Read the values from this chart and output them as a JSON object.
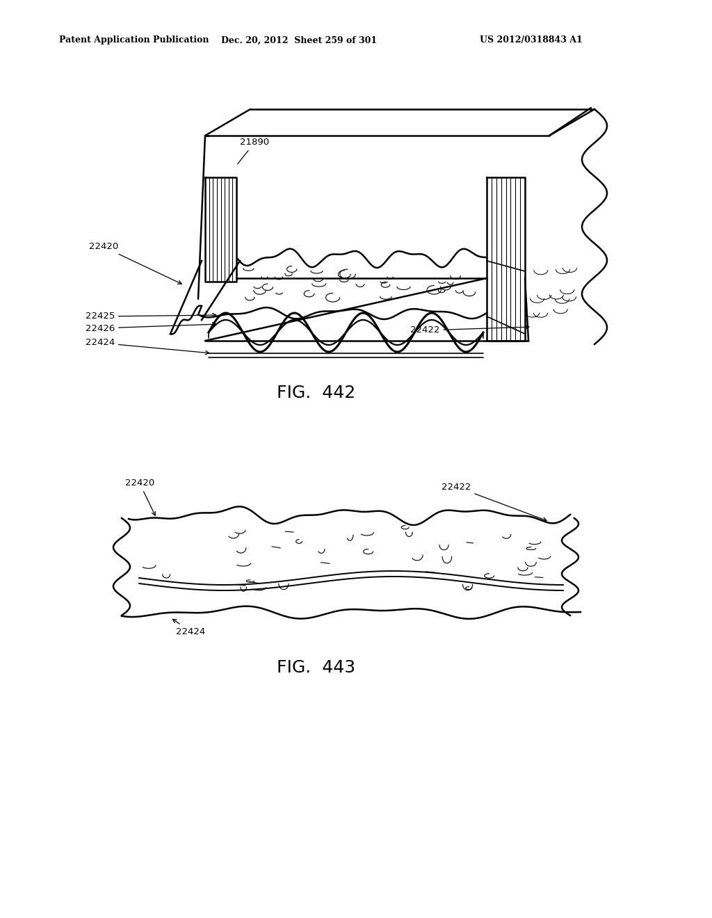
{
  "header_left": "Patent Application Publication",
  "header_mid": "Dec. 20, 2012  Sheet 259 of 301",
  "header_right": "US 2012/0318843 A1",
  "fig1_label": "FIG.  442",
  "fig2_label": "FIG.  443",
  "background_color": "#ffffff",
  "line_color": "#000000"
}
